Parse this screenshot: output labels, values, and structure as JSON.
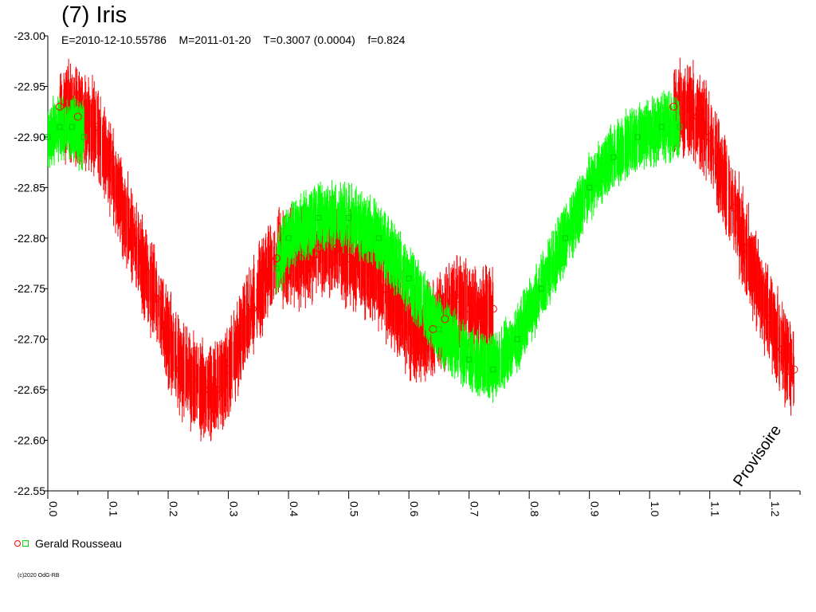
{
  "chart_data": {
    "type": "scatter",
    "title": "(7) Iris",
    "subtitle": "E=2010-12-10.55786    M=2011-01-20    T=0.3007 (0.0004)    f=0.824",
    "xlabel": "",
    "ylabel": "",
    "xlim": [
      0.0,
      1.25
    ],
    "ylim": [
      -23.0,
      -22.55
    ],
    "y_inverted": true,
    "grid": false,
    "x_ticks": [
      "0.0",
      "0.1",
      "0.2",
      "0.3",
      "0.4",
      "0.5",
      "0.6",
      "0.7",
      "0.8",
      "0.9",
      "1.0",
      "1.1",
      "1.2"
    ],
    "y_ticks": [
      "-23.00",
      "-22.95",
      "-22.90",
      "-22.85",
      "-22.80",
      "-22.75",
      "-22.70",
      "-22.65",
      "-22.60",
      "-22.55"
    ],
    "annotation": "Provisoire",
    "legend": {
      "label": "Gerald Rousseau",
      "position": "bottom-left"
    },
    "series": [
      {
        "name": "Gerald Rousseau",
        "color": "#ff0000",
        "marker": "circle",
        "x": [
          0.02,
          0.05,
          0.08,
          0.1,
          0.12,
          0.14,
          0.16,
          0.18,
          0.2,
          0.22,
          0.24,
          0.26,
          0.28,
          0.3,
          0.32,
          0.34,
          0.36,
          0.38,
          0.42,
          0.45,
          0.48,
          0.5,
          0.53,
          0.56,
          0.58,
          0.6,
          0.62,
          0.64,
          0.66,
          0.68,
          0.7,
          0.72,
          0.74,
          1.04,
          1.06,
          1.08,
          1.1,
          1.12,
          1.14,
          1.16,
          1.18,
          1.2,
          1.22,
          1.24
        ],
        "y": [
          -22.93,
          -22.92,
          -22.91,
          -22.88,
          -22.84,
          -22.8,
          -22.77,
          -22.74,
          -22.7,
          -22.67,
          -22.66,
          -22.65,
          -22.65,
          -22.67,
          -22.7,
          -22.73,
          -22.76,
          -22.78,
          -22.78,
          -22.79,
          -22.79,
          -22.78,
          -22.77,
          -22.75,
          -22.73,
          -22.71,
          -22.7,
          -22.71,
          -22.72,
          -22.74,
          -22.73,
          -22.72,
          -22.73,
          -22.93,
          -22.93,
          -22.92,
          -22.9,
          -22.86,
          -22.83,
          -22.79,
          -22.75,
          -22.72,
          -22.69,
          -22.67
        ]
      },
      {
        "name": "",
        "color": "#00ff00",
        "marker": "square",
        "x": [
          0.0,
          0.02,
          0.04,
          0.06,
          0.38,
          0.4,
          0.45,
          0.5,
          0.55,
          0.6,
          0.65,
          0.7,
          0.74,
          0.78,
          0.82,
          0.86,
          0.9,
          0.94,
          0.98,
          1.02,
          1.05
        ],
        "y": [
          -22.9,
          -22.91,
          -22.91,
          -22.9,
          -22.77,
          -22.8,
          -22.82,
          -22.82,
          -22.8,
          -22.76,
          -22.71,
          -22.68,
          -22.67,
          -22.7,
          -22.75,
          -22.8,
          -22.85,
          -22.88,
          -22.9,
          -22.91,
          -22.91
        ]
      }
    ]
  }
}
